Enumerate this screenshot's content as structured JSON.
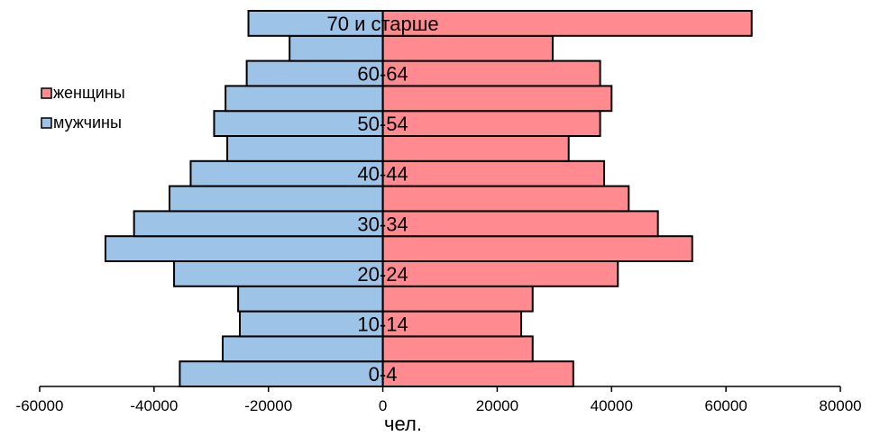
{
  "chart_data": {
    "type": "bar",
    "orientation": "horizontal",
    "stacking": "diverging",
    "categories": [
      "0-4",
      "",
      "10-14",
      "",
      "20-24",
      "",
      "30-34",
      "",
      "40-44",
      "",
      "50-54",
      "",
      "60-64",
      "",
      "70 и старше"
    ],
    "series": [
      {
        "name": "мужчины",
        "color": "#9dc3e6",
        "values": [
          -35500,
          -28000,
          -25000,
          -25300,
          -36500,
          -48500,
          -43500,
          -37300,
          -33600,
          -27200,
          -29500,
          -27500,
          -23800,
          -16300,
          -23500
        ]
      },
      {
        "name": "женщины",
        "color": "#ff8a8f",
        "values": [
          33300,
          26200,
          24200,
          26200,
          41100,
          54100,
          48100,
          43000,
          38700,
          32500,
          38000,
          40000,
          38000,
          29700,
          64500
        ]
      }
    ],
    "xlim": [
      -60000,
      80000
    ],
    "xticks": [
      -60000,
      -40000,
      -20000,
      0,
      20000,
      40000,
      60000,
      80000
    ],
    "xtick_labels": [
      "-60000",
      "-40000",
      "-20000",
      "0",
      "20000",
      "40000",
      "60000",
      "80000"
    ],
    "xlabel": "чел.",
    "title": "",
    "ylabel": "",
    "grid": false,
    "legend_position": "left-top",
    "legend": [
      {
        "label": "женщины",
        "color": "#ff8a8f"
      },
      {
        "label": "мужчины",
        "color": "#9dc3e6"
      }
    ]
  }
}
